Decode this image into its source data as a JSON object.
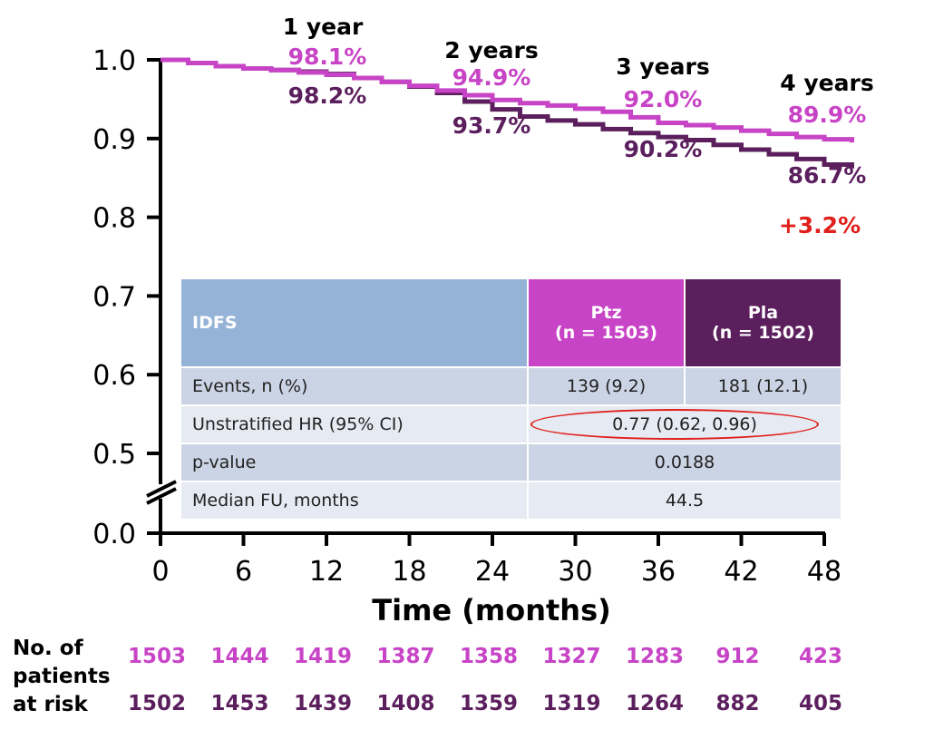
{
  "colors": {
    "ptz": "#c844c6",
    "pla": "#5c1f5e",
    "header_idfs": "#95b3d7",
    "header_ptz": "#c844c6",
    "header_pla": "#5c1f5e",
    "row_dark": "#cbd4e4",
    "row_light": "#e6eaf2",
    "highlight_red": "#e0201b",
    "axis": "#000000"
  },
  "chart_data": {
    "type": "line",
    "title": "",
    "xlabel": "Time (months)",
    "ylabel": "",
    "xlim": [
      0,
      48
    ],
    "ylim_upper": [
      0.5,
      1.0
    ],
    "ylim_lower": [
      0.0,
      0.0
    ],
    "y_axis_break": true,
    "x_ticks": [
      0,
      6,
      12,
      18,
      24,
      30,
      36,
      42,
      48
    ],
    "x_tick_labels": [
      "0",
      "6",
      "12",
      "18",
      "24",
      "30",
      "36",
      "42",
      "48"
    ],
    "y_ticks": [
      1.0,
      0.9,
      0.8,
      0.7,
      0.6,
      0.5,
      0.0
    ],
    "y_tick_labels": [
      "1.0",
      "0.9",
      "0.8",
      "0.7",
      "0.6",
      "0.5",
      "0.0"
    ],
    "series": [
      {
        "name": "Ptz",
        "color": "#c844c6",
        "x": [
          0,
          2,
          4,
          6,
          8,
          10,
          12,
          14,
          16,
          18,
          20,
          22,
          24,
          26,
          28,
          30,
          32,
          34,
          36,
          38,
          40,
          42,
          44,
          46,
          48,
          50
        ],
        "y": [
          1.0,
          0.996,
          0.992,
          0.989,
          0.987,
          0.984,
          0.981,
          0.977,
          0.972,
          0.967,
          0.961,
          0.955,
          0.949,
          0.945,
          0.942,
          0.938,
          0.934,
          0.927,
          0.92,
          0.917,
          0.914,
          0.91,
          0.906,
          0.902,
          0.899,
          0.895
        ]
      },
      {
        "name": "Pla",
        "color": "#5c1f5e",
        "x": [
          0,
          2,
          4,
          6,
          8,
          10,
          12,
          14,
          16,
          18,
          20,
          22,
          24,
          26,
          28,
          30,
          32,
          34,
          36,
          38,
          40,
          42,
          44,
          46,
          48,
          50
        ],
        "y": [
          1.0,
          0.996,
          0.992,
          0.989,
          0.987,
          0.985,
          0.982,
          0.977,
          0.972,
          0.966,
          0.958,
          0.947,
          0.937,
          0.928,
          0.923,
          0.918,
          0.912,
          0.907,
          0.902,
          0.898,
          0.892,
          0.886,
          0.88,
          0.874,
          0.867,
          0.862
        ]
      }
    ],
    "annotations": [
      {
        "year_label": "1 year",
        "ptz": "98.1%",
        "pla": "98.2%"
      },
      {
        "year_label": "2 years",
        "ptz": "94.9%",
        "pla": "93.7%"
      },
      {
        "year_label": "3 years",
        "ptz": "92.0%",
        "pla": "90.2%"
      },
      {
        "year_label": "4 years",
        "ptz": "89.9%",
        "pla": "86.7%"
      }
    ],
    "difference_label": "+3.2%"
  },
  "table": {
    "header": {
      "col1": "IDFS",
      "col2_line1": "Ptz",
      "col2_line2": "(n = 1503)",
      "col3_line1": "Pla",
      "col3_line2": "(n = 1502)"
    },
    "rows": [
      {
        "label": "Events, n (%)",
        "ptz": "139 (9.2)",
        "pla": "181 (12.1)"
      },
      {
        "label": "Unstratified HR (95% CI)",
        "value": "0.77 (0.62, 0.96)"
      },
      {
        "label": "p-value",
        "value": "0.0188"
      },
      {
        "label": "Median FU, months",
        "value": "44.5"
      }
    ]
  },
  "risk_table": {
    "label_lines": [
      "No. of",
      "patients",
      "at risk"
    ],
    "ptz": [
      "1503",
      "1444",
      "1419",
      "1387",
      "1358",
      "1327",
      "1283",
      "912",
      "423"
    ],
    "pla": [
      "1502",
      "1453",
      "1439",
      "1408",
      "1359",
      "1319",
      "1264",
      "882",
      "405"
    ]
  }
}
